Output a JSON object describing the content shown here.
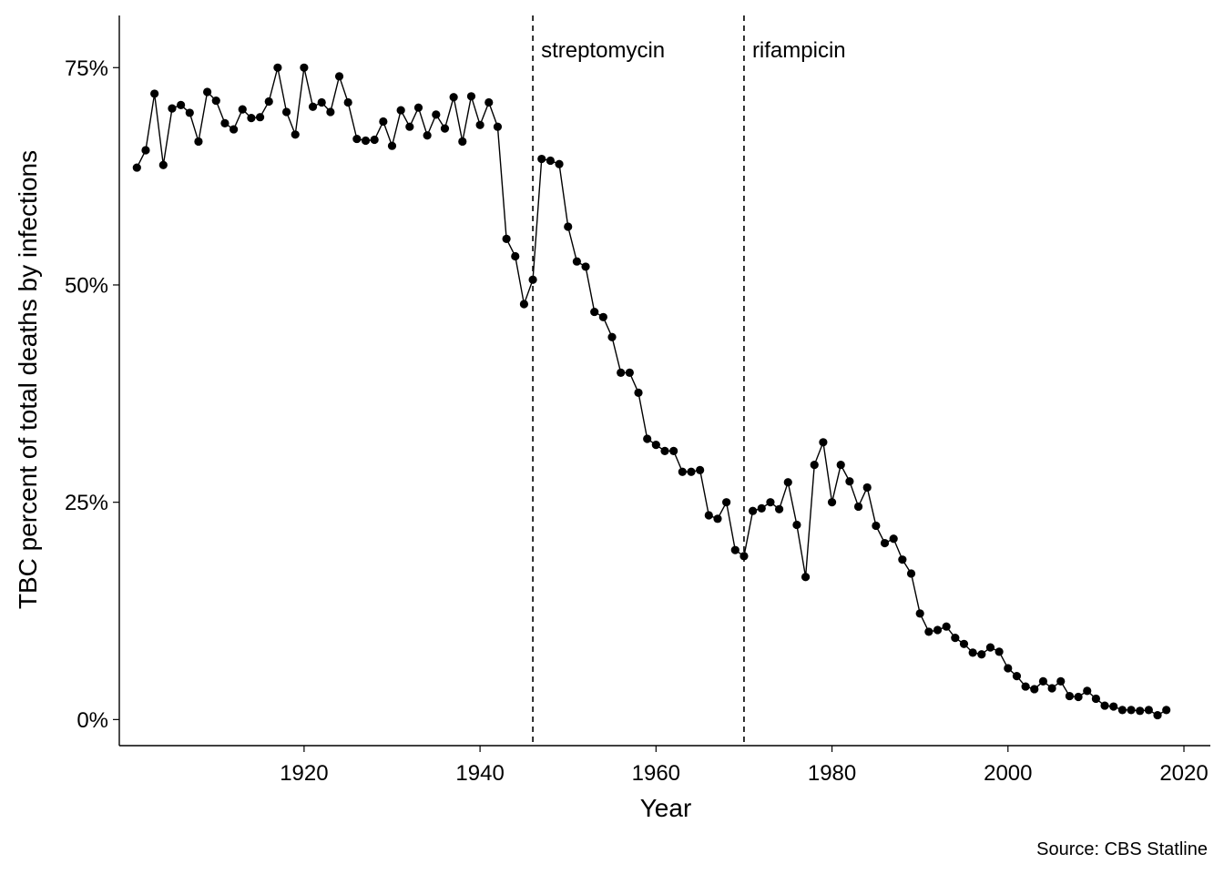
{
  "chart_data": {
    "type": "line",
    "title": "",
    "xlabel": "Year",
    "ylabel": "TBC percent of total deaths by infections",
    "caption": "Source: CBS Statline",
    "xlim": [
      1899,
      2023
    ],
    "ylim": [
      -3,
      81
    ],
    "x_ticks": [
      1920,
      1940,
      1960,
      1980,
      2000,
      2020
    ],
    "x_tick_labels": [
      "1920",
      "1940",
      "1960",
      "1980",
      "2000",
      "2020"
    ],
    "y_ticks": [
      0,
      25,
      50,
      75
    ],
    "y_tick_labels": [
      "0%",
      "25%",
      "50%",
      "75%"
    ],
    "grid": false,
    "annotations": [
      {
        "x": 1946,
        "label": "streptomycin"
      },
      {
        "x": 1970,
        "label": "rifampicin"
      }
    ],
    "series": [
      {
        "x": [
          1901,
          1902,
          1903,
          1904,
          1905,
          1906,
          1907,
          1908,
          1909,
          1910,
          1911,
          1912,
          1913,
          1914,
          1915,
          1916,
          1917,
          1918,
          1919,
          1920,
          1921,
          1922,
          1923,
          1924,
          1925,
          1926,
          1927,
          1928,
          1929,
          1930,
          1931,
          1932,
          1933,
          1934,
          1935,
          1936,
          1937,
          1938,
          1939,
          1940,
          1941,
          1942,
          1943,
          1944,
          1945,
          1946,
          1947,
          1948,
          1949,
          1950,
          1951,
          1952,
          1953,
          1954,
          1955,
          1956,
          1957,
          1958,
          1959,
          1960,
          1961,
          1962,
          1963,
          1964,
          1965,
          1966,
          1967,
          1968,
          1969,
          1970,
          1971,
          1972,
          1973,
          1974,
          1975,
          1976,
          1977,
          1978,
          1979,
          1980,
          1981,
          1982,
          1983,
          1984,
          1985,
          1986,
          1987,
          1988,
          1989,
          1990,
          1991,
          1992,
          1993,
          1994,
          1995,
          1996,
          1997,
          1998,
          1999,
          2000,
          2001,
          2002,
          2003,
          2004,
          2005,
          2006,
          2007,
          2008,
          2009,
          2010,
          2011,
          2012,
          2013,
          2014,
          2015,
          2016,
          2017,
          2018
        ],
        "values": [
          63.5,
          65.5,
          72.0,
          63.8,
          70.3,
          70.7,
          69.8,
          66.5,
          72.2,
          71.2,
          68.6,
          67.9,
          70.2,
          69.2,
          69.3,
          71.1,
          75.0,
          69.9,
          67.3,
          75.0,
          70.5,
          71.0,
          69.9,
          74.0,
          71.0,
          66.8,
          66.6,
          66.7,
          68.8,
          66.0,
          70.1,
          68.2,
          70.4,
          67.2,
          69.6,
          68.0,
          71.6,
          66.5,
          71.7,
          68.4,
          71.0,
          68.2,
          55.3,
          53.3,
          47.8,
          50.6,
          64.5,
          64.3,
          63.9,
          56.7,
          52.7,
          52.1,
          46.9,
          46.3,
          44.0,
          39.9,
          39.9,
          37.6,
          32.3,
          31.6,
          30.9,
          30.9,
          28.5,
          28.5,
          28.7,
          23.5,
          23.1,
          25.0,
          19.5,
          18.8,
          24.0,
          24.3,
          25.0,
          24.2,
          27.3,
          22.4,
          16.4,
          29.3,
          31.9,
          25.0,
          29.3,
          27.4,
          24.5,
          26.7,
          22.3,
          20.3,
          20.8,
          18.4,
          16.8,
          12.2,
          10.1,
          10.3,
          10.7,
          9.4,
          8.7,
          7.7,
          7.5,
          8.3,
          7.8,
          5.9,
          5.0,
          3.8,
          3.5,
          4.4,
          3.6,
          4.4,
          2.7,
          2.6,
          3.3,
          2.4,
          1.6,
          1.5,
          1.1,
          1.1,
          1.0,
          1.1,
          0.5,
          1.1
        ]
      }
    ]
  }
}
